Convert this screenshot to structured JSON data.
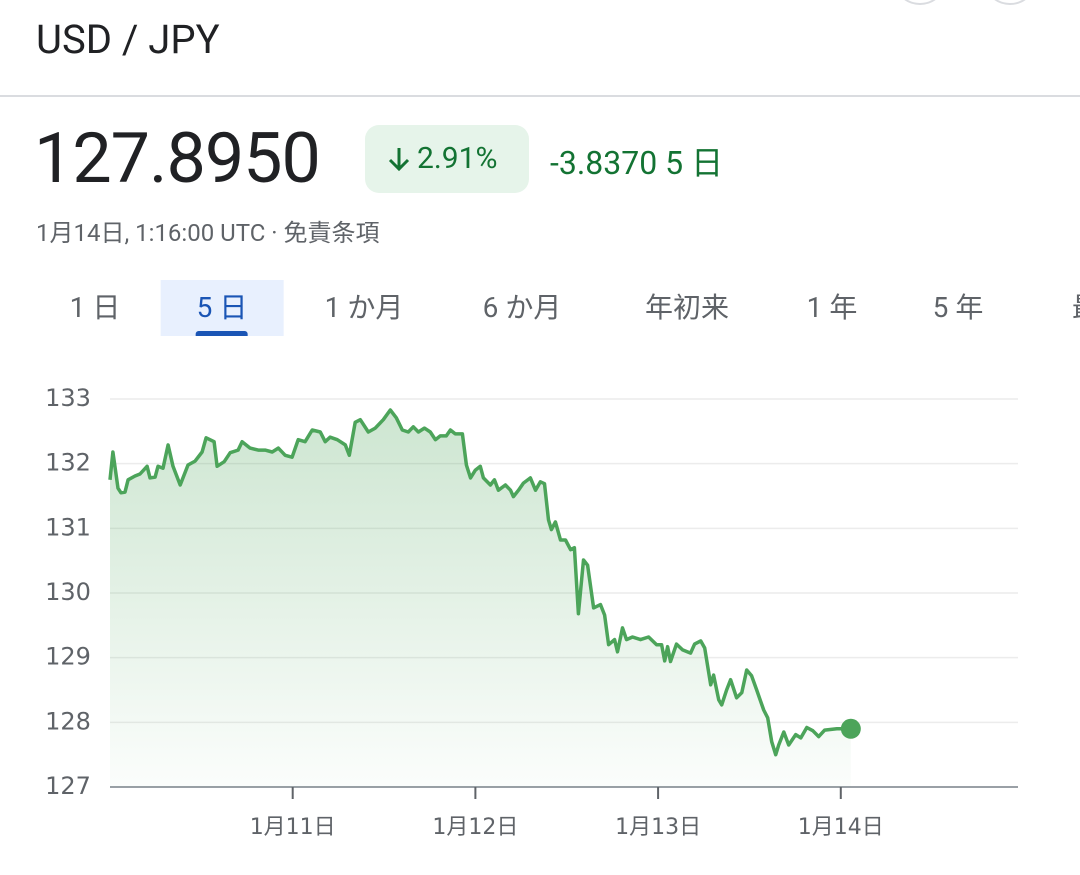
{
  "header": {
    "title": "USD / JPY"
  },
  "quote": {
    "price": "127.8950",
    "change_percent": "2.91%",
    "change": "-3.8370",
    "period": "5 日",
    "timestamp": "1月14日, 1:16:00 UTC",
    "separator": "·",
    "disclaimer": "免責条項"
  },
  "tabs": [
    "1 日",
    "5 日",
    "1 か月",
    "6 か月",
    "年初来",
    "1 年",
    "5 年",
    "最大"
  ],
  "selected_tab": 1,
  "chart_data": {
    "type": "line",
    "color": "#4ca45a",
    "grid": true,
    "xlim": [
      10,
      14.97
    ],
    "ylim": [
      127,
      133
    ],
    "yticks": [
      127,
      128,
      129,
      130,
      131,
      132,
      133
    ],
    "xticks": [
      {
        "value": 11,
        "label": "1月11日"
      },
      {
        "value": 12,
        "label": "1月12日"
      },
      {
        "value": 13,
        "label": "1月13日"
      },
      {
        "value": 14,
        "label": "1月14日"
      }
    ],
    "x": [
      10.0,
      10.016,
      10.044,
      10.06,
      10.082,
      10.099,
      10.137,
      10.164,
      10.203,
      10.219,
      10.247,
      10.263,
      10.29,
      10.318,
      10.345,
      10.384,
      10.427,
      10.466,
      10.504,
      10.526,
      10.57,
      10.586,
      10.625,
      10.658,
      10.701,
      10.723,
      10.767,
      10.811,
      10.849,
      10.888,
      10.921,
      10.959,
      10.997,
      11.03,
      11.068,
      11.107,
      11.151,
      11.178,
      11.205,
      11.244,
      11.288,
      11.31,
      11.342,
      11.37,
      11.414,
      11.452,
      11.496,
      11.534,
      11.567,
      11.6,
      11.633,
      11.66,
      11.688,
      11.721,
      11.753,
      11.781,
      11.808,
      11.841,
      11.863,
      11.89,
      11.929,
      11.951,
      11.973,
      12.0,
      12.027,
      12.044,
      12.082,
      12.104,
      12.126,
      12.164,
      12.192,
      12.208,
      12.236,
      12.263,
      12.301,
      12.329,
      12.356,
      12.378,
      12.4,
      12.416,
      12.438,
      12.466,
      12.493,
      12.521,
      12.542,
      12.564,
      12.592,
      12.614,
      12.647,
      12.685,
      12.707,
      12.729,
      12.762,
      12.778,
      12.805,
      12.827,
      12.86,
      12.904,
      12.948,
      12.992,
      13.019,
      13.036,
      13.052,
      13.068,
      13.101,
      13.134,
      13.178,
      13.2,
      13.233,
      13.255,
      13.288,
      13.304,
      13.332,
      13.348,
      13.375,
      13.397,
      13.43,
      13.458,
      13.485,
      13.512,
      13.54,
      13.578,
      13.6,
      13.622,
      13.644,
      13.66,
      13.688,
      13.715,
      13.753,
      13.781,
      13.814,
      13.847,
      13.879,
      13.912,
      13.978,
      14.055
    ],
    "values": [
      131.75,
      132.18,
      131.62,
      131.55,
      131.56,
      131.75,
      131.81,
      131.84,
      131.96,
      131.78,
      131.79,
      131.96,
      131.93,
      132.29,
      131.96,
      131.67,
      131.98,
      132.04,
      132.18,
      132.4,
      132.34,
      131.96,
      132.03,
      132.17,
      132.21,
      132.34,
      132.24,
      132.21,
      132.21,
      132.18,
      132.24,
      132.13,
      132.1,
      132.37,
      132.34,
      132.52,
      132.49,
      132.34,
      132.41,
      132.37,
      132.29,
      132.13,
      132.64,
      132.68,
      132.49,
      132.55,
      132.68,
      132.83,
      132.71,
      132.52,
      132.49,
      132.57,
      132.49,
      132.55,
      132.49,
      132.37,
      132.43,
      132.43,
      132.52,
      132.46,
      132.46,
      131.98,
      131.78,
      131.9,
      131.96,
      131.78,
      131.67,
      131.75,
      131.59,
      131.67,
      131.59,
      131.49,
      131.59,
      131.7,
      131.78,
      131.59,
      131.72,
      131.69,
      131.13,
      130.98,
      131.1,
      130.82,
      130.82,
      130.67,
      130.7,
      129.68,
      130.51,
      130.43,
      129.77,
      129.82,
      129.66,
      129.2,
      129.28,
      129.09,
      129.46,
      129.28,
      129.32,
      129.28,
      129.32,
      129.2,
      129.2,
      128.95,
      129.17,
      128.94,
      129.21,
      129.12,
      129.07,
      129.21,
      129.26,
      129.15,
      128.58,
      128.73,
      128.35,
      128.27,
      128.5,
      128.66,
      128.38,
      128.46,
      128.81,
      128.72,
      128.5,
      128.19,
      128.07,
      127.7,
      127.5,
      127.65,
      127.85,
      127.65,
      127.81,
      127.76,
      127.92,
      127.87,
      127.78,
      127.88,
      127.9,
      127.9
    ]
  }
}
